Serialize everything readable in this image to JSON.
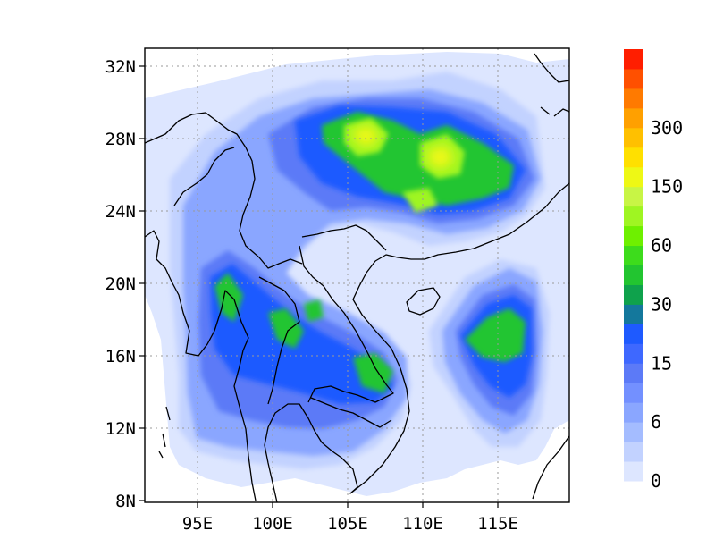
{
  "map": {
    "lat_ticks": [
      "8N",
      "12N",
      "16N",
      "20N",
      "24N",
      "28N",
      "32N"
    ],
    "lon_ticks": [
      "95E",
      "100E",
      "105E",
      "110E",
      "115E"
    ]
  },
  "colorbar": {
    "levels": [
      "0",
      "6",
      "15",
      "30",
      "60",
      "150",
      "300"
    ],
    "colors": [
      "#dde6ff",
      "#c2d2ff",
      "#a4bcff",
      "#8aa6ff",
      "#7390ff",
      "#5c7af7",
      "#3e68ff",
      "#1e5aff",
      "#14789c",
      "#0fa24c",
      "#22c530",
      "#3ddc1c",
      "#6ef000",
      "#9ff522",
      "#c8f545",
      "#eef815",
      "#ffe000",
      "#ffc000",
      "#ffa000",
      "#ff7a00",
      "#ff5000",
      "#ff1e00"
    ]
  },
  "palette": {
    "frame": "#000000",
    "grid": "#9a9a9a",
    "coast": "#000000"
  }
}
